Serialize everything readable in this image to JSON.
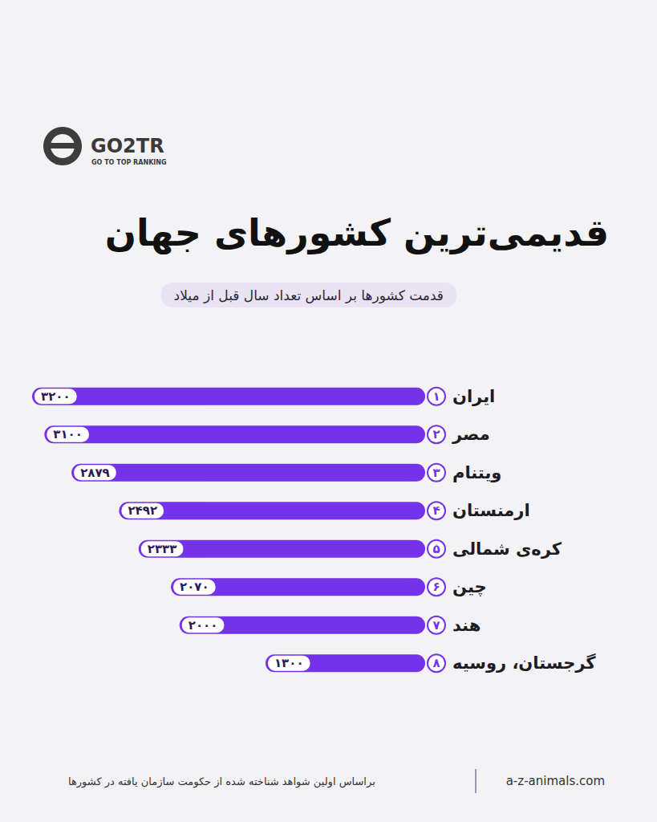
{
  "chart_data": {
    "type": "bar",
    "title": "قدیمی‌ترین کشورهای جهان",
    "subtitle": "قدمت کشورها بر اساس تعداد سال قبل از میلاد",
    "categories": [
      "ایران",
      "مصر",
      "ویتنام",
      "ارمنستان",
      "کره‌ی شمالی",
      "چین",
      "هند",
      "گرجستان، روسیه"
    ],
    "rank_labels": [
      "۱",
      "۲",
      "۳",
      "۴",
      "۵",
      "۶",
      "۷",
      "۸"
    ],
    "values": [
      3200,
      3100,
      2879,
      2492,
      2333,
      2070,
      2000,
      1300
    ],
    "value_labels": [
      "۳۲۰۰",
      "۳۱۰۰",
      "۲۸۷۹",
      "۲۴۹۲",
      "۲۳۳۳",
      "۲۰۷۰",
      "۲۰۰۰",
      "۱۳۰۰"
    ],
    "color": "#7433e8",
    "orientation": "horizontal",
    "xlim": [
      0,
      3200
    ],
    "xticks": [
      0,
      3200
    ],
    "tick_labels": false,
    "grid": false,
    "data_labels": true,
    "footnote": "براساس اولین شواهد شناخته شده از حکومت سازمان یافته در کشورها",
    "source": "a-z-animals.com",
    "logo": {
      "name": "GO2TR",
      "tagline": "GO TO TOP RANKING"
    }
  }
}
